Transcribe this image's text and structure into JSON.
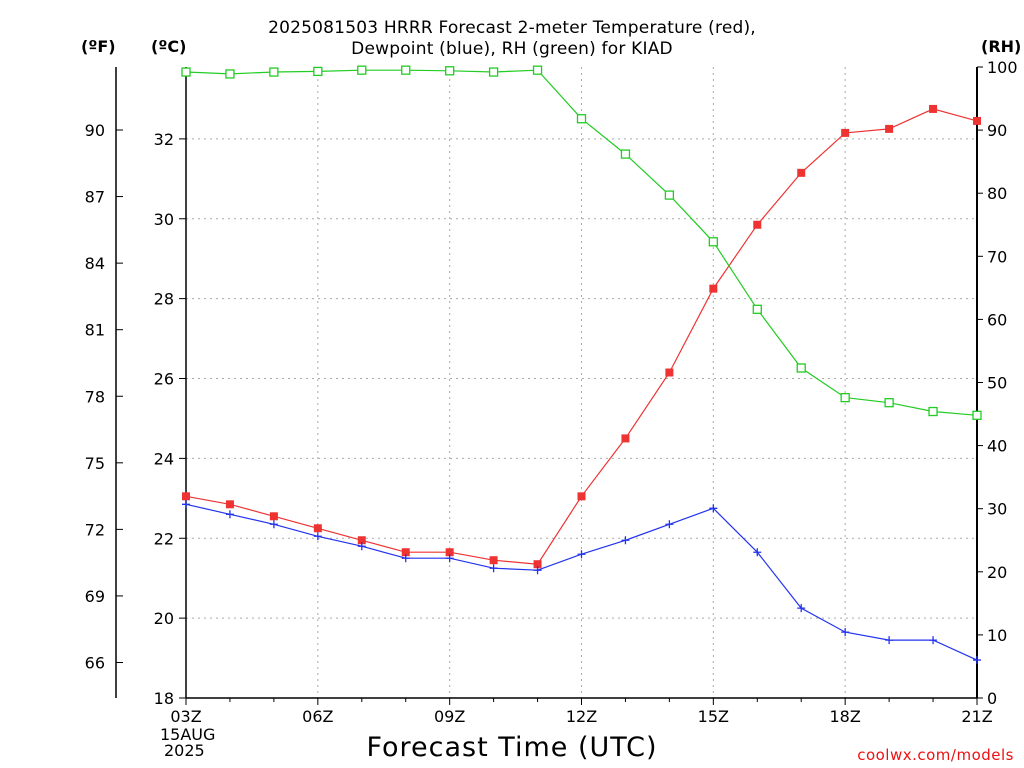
{
  "title_line1": "2025081503 HRRR Forecast 2-meter Temperature (red),",
  "title_line2": "Dewpoint (blue), RH (green) for KIAD",
  "left_unit_f": "(ºF)",
  "left_unit_c": "(ºC)",
  "right_unit": "(RH)",
  "x_title": "Forecast Time (UTC)",
  "credit": "coolwx.com/models",
  "start_date_line1": "15AUG",
  "start_date_line2": "2025",
  "chart_data": {
    "type": "line",
    "title": "2025081503 HRRR Forecast 2-meter Temperature (red), Dewpoint (blue), RH (green) for KIAD",
    "xlabel": "Forecast Time (UTC)",
    "x": [
      "03Z",
      "04Z",
      "05Z",
      "06Z",
      "07Z",
      "08Z",
      "09Z",
      "10Z",
      "11Z",
      "12Z",
      "13Z",
      "14Z",
      "15Z",
      "16Z",
      "17Z",
      "18Z",
      "19Z",
      "20Z",
      "21Z"
    ],
    "x_tick_labels": [
      "03Z",
      "06Z",
      "09Z",
      "12Z",
      "15Z",
      "18Z",
      "21Z"
    ],
    "y_celsius": {
      "label": "(ºC)",
      "range": [
        18,
        33.8
      ],
      "ticks": [
        18,
        20,
        22,
        24,
        26,
        28,
        30,
        32
      ]
    },
    "y_fahrenheit": {
      "label": "(ºF)",
      "ticks": [
        66,
        69,
        72,
        75,
        78,
        81,
        84,
        87,
        90
      ]
    },
    "y_rh": {
      "label": "(RH)",
      "range": [
        0,
        100
      ],
      "ticks": [
        0,
        10,
        20,
        30,
        40,
        50,
        60,
        70,
        80,
        90,
        100
      ]
    },
    "grid": true,
    "series": [
      {
        "name": "Temperature",
        "color": "#ee3333",
        "marker": "filled-square",
        "axis": "celsius",
        "values": [
          23.05,
          22.85,
          22.55,
          22.25,
          21.95,
          21.65,
          21.65,
          21.45,
          21.35,
          23.05,
          24.5,
          26.15,
          28.25,
          29.85,
          31.15,
          32.15,
          32.25,
          32.75,
          32.45
        ]
      },
      {
        "name": "Dewpoint",
        "color": "#2233ee",
        "marker": "plus",
        "axis": "celsius",
        "values": [
          22.85,
          22.6,
          22.35,
          22.05,
          21.8,
          21.5,
          21.5,
          21.25,
          21.2,
          21.6,
          21.95,
          22.35,
          22.75,
          21.65,
          20.25,
          19.65,
          19.45,
          19.45,
          18.95
        ]
      },
      {
        "name": "RH",
        "color": "#22cc22",
        "marker": "open-square",
        "axis": "rh",
        "values": [
          99.2,
          98.9,
          99.2,
          99.3,
          99.5,
          99.5,
          99.4,
          99.2,
          99.5,
          91.8,
          86.2,
          79.7,
          72.3,
          61.6,
          52.3,
          47.6,
          46.8,
          45.4,
          44.8
        ]
      }
    ]
  }
}
